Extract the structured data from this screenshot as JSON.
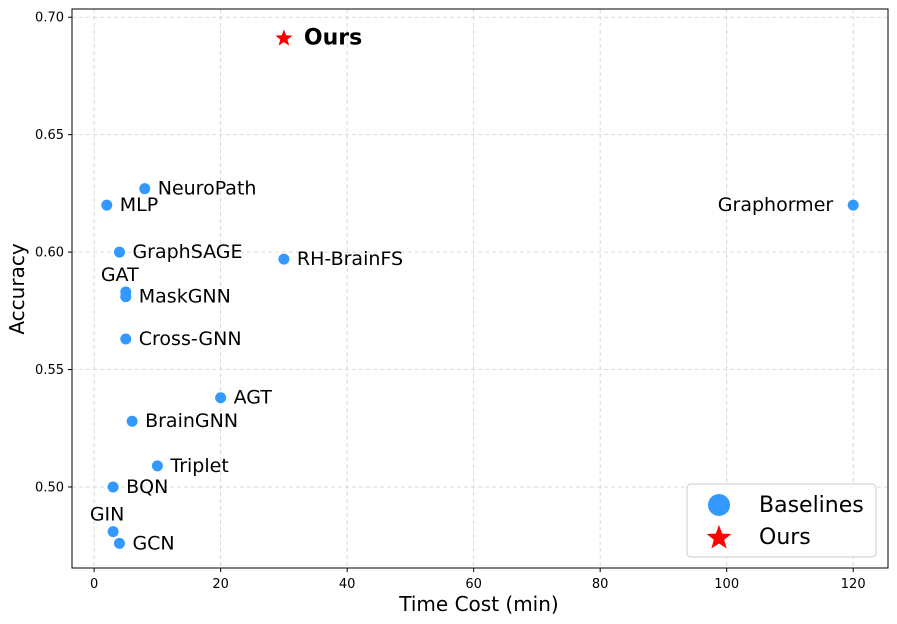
{
  "chart_data": {
    "type": "scatter",
    "xlabel": "Time Cost (min)",
    "ylabel": "Accuracy",
    "xlim": [
      -3.5,
      125.5
    ],
    "ylim": [
      0.4655,
      0.7035
    ],
    "xticks": [
      0,
      20,
      40,
      60,
      80,
      100,
      120
    ],
    "yticks": [
      0.5,
      0.55,
      0.6,
      0.65,
      0.7
    ],
    "xtick_labels": [
      "0",
      "20",
      "40",
      "60",
      "80",
      "100",
      "120"
    ],
    "ytick_labels": [
      "0.50",
      "0.55",
      "0.60",
      "0.65",
      "0.70"
    ],
    "grid": true,
    "legend_position": "bottom-right",
    "series": [
      {
        "name": "Baselines",
        "color": "#3399ff",
        "marker": "circle",
        "points": [
          {
            "label": "NeuroPath",
            "x": 8,
            "y": 0.627,
            "label_side": "right"
          },
          {
            "label": "MLP",
            "x": 2,
            "y": 0.62,
            "label_side": "right"
          },
          {
            "label": "Graphormer",
            "x": 120,
            "y": 0.62,
            "label_side": "left"
          },
          {
            "label": "GraphSAGE",
            "x": 4,
            "y": 0.6,
            "label_side": "right"
          },
          {
            "label": "RH-BrainFS",
            "x": 30,
            "y": 0.597,
            "label_side": "right"
          },
          {
            "label": "GAT",
            "x": 5,
            "y": 0.583,
            "label_side": "above"
          },
          {
            "label": "MaskGNN",
            "x": 5,
            "y": 0.581,
            "label_side": "right"
          },
          {
            "label": "Cross-GNN",
            "x": 5,
            "y": 0.563,
            "label_side": "right"
          },
          {
            "label": "AGT",
            "x": 20,
            "y": 0.538,
            "label_side": "right"
          },
          {
            "label": "BrainGNN",
            "x": 6,
            "y": 0.528,
            "label_side": "right"
          },
          {
            "label": "Triplet",
            "x": 10,
            "y": 0.509,
            "label_side": "right"
          },
          {
            "label": "BQN",
            "x": 3,
            "y": 0.5,
            "label_side": "right"
          },
          {
            "label": "GIN",
            "x": 3,
            "y": 0.481,
            "label_side": "above"
          },
          {
            "label": "GCN",
            "x": 4,
            "y": 0.476,
            "label_side": "right"
          }
        ]
      },
      {
        "name": "Ours",
        "color": "#ff0000",
        "marker": "star",
        "points": [
          {
            "label": "Ours",
            "x": 30,
            "y": 0.691,
            "label_side": "right"
          }
        ]
      }
    ]
  }
}
